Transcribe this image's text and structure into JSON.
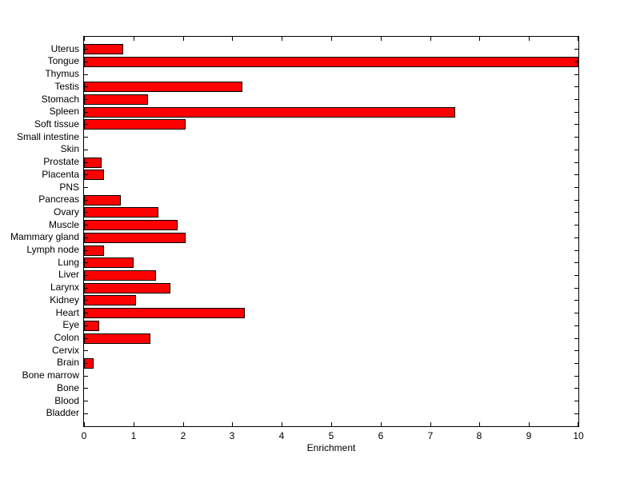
{
  "figure": {
    "background": "#FFFFFF",
    "axis_color": "#000000",
    "text_color": "#000000"
  },
  "chart_data": {
    "type": "bar",
    "orientation": "horizontal",
    "title": "",
    "xlabel": "Enrichment",
    "ylabel": "",
    "xlim": [
      0,
      10
    ],
    "x_ticks": [
      0,
      1,
      2,
      3,
      4,
      5,
      6,
      7,
      8,
      9,
      10
    ],
    "grid": false,
    "legend": null,
    "bar_color": "#FF0000",
    "bar_edge_color": "#000000",
    "categories": [
      "Uterus",
      "Tongue",
      "Thymus",
      "Testis",
      "Stomach",
      "Spleen",
      "Soft tissue",
      "Small intestine",
      "Skin",
      "Prostate",
      "Placenta",
      "PNS",
      "Pancreas",
      "Ovary",
      "Muscle",
      "Mammary gland",
      "Lymph node",
      "Lung",
      "Liver",
      "Larynx",
      "Kidney",
      "Heart",
      "Eye",
      "Colon",
      "Cervix",
      "Brain",
      "Bone marrow",
      "Bone",
      "Blood",
      "Bladder"
    ],
    "values": [
      0.8,
      10,
      0,
      3.2,
      1.3,
      7.5,
      2.05,
      0,
      0,
      0.35,
      0.4,
      0,
      0.75,
      1.5,
      1.9,
      2.05,
      0.4,
      1.0,
      1.45,
      1.75,
      1.05,
      3.25,
      0.3,
      1.35,
      0,
      0.2,
      0,
      0,
      0,
      0
    ]
  }
}
